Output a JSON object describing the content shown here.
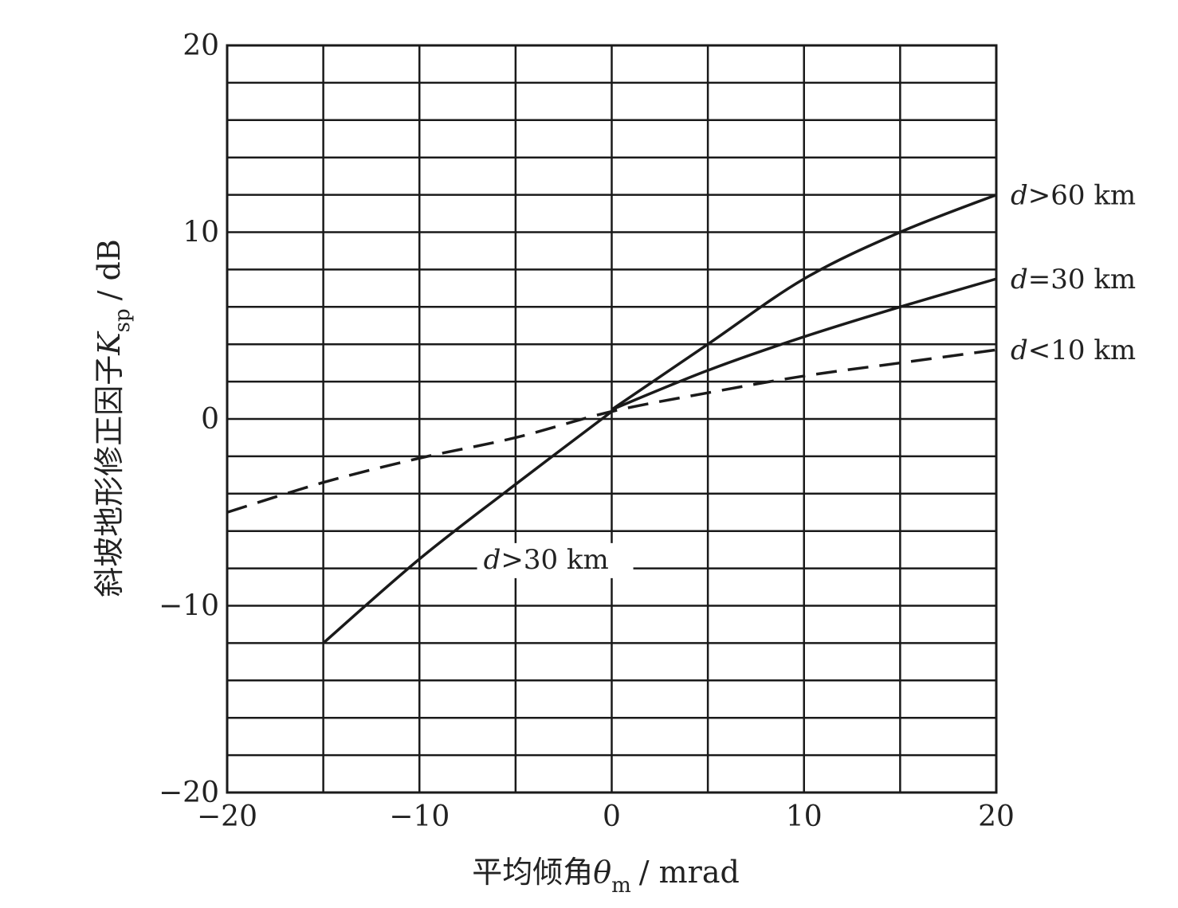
{
  "chart_data": {
    "type": "line",
    "xlabel": {
      "prefix": "平均倾角",
      "symbol": "θ",
      "sub": "m",
      "unit": "/ mrad"
    },
    "ylabel": {
      "prefix": "斜坡地形修正因子",
      "symbol": "K",
      "sub": "sp",
      "unit": "/ dB"
    },
    "xlim": [
      -20,
      20
    ],
    "ylim": [
      -20,
      20
    ],
    "x_ticks": [
      {
        "value": -20,
        "label": "−20"
      },
      {
        "value": -10,
        "label": "−10"
      },
      {
        "value": 0,
        "label": "0"
      },
      {
        "value": 10,
        "label": "10"
      },
      {
        "value": 20,
        "label": "20"
      }
    ],
    "y_ticks": [
      {
        "value": 20,
        "label": "20"
      },
      {
        "value": 10,
        "label": "10"
      },
      {
        "value": 0,
        "label": "0"
      },
      {
        "value": -10,
        "label": "−10"
      },
      {
        "value": -20,
        "label": "−20"
      }
    ],
    "x_grid_step": 5,
    "y_grid_step": 2,
    "grid": true,
    "series": [
      {
        "name": "d>60 km",
        "label": {
          "var": "d",
          "rest": ">60 km"
        },
        "style": "solid",
        "x": [
          0,
          5,
          10,
          15,
          20
        ],
        "y": [
          0.5,
          4,
          7.5,
          10,
          12
        ]
      },
      {
        "name": "d=30 km",
        "label": {
          "var": "d",
          "rest": "=30 km"
        },
        "style": "solid",
        "x": [
          0,
          5,
          10,
          15,
          20
        ],
        "y": [
          0.5,
          2.6,
          4.4,
          6,
          7.5
        ]
      },
      {
        "name": "d<10 km",
        "label": {
          "var": "d",
          "rest": "<10 km"
        },
        "style": "dashed",
        "x": [
          -20,
          -15,
          -10,
          -5,
          0,
          5,
          10,
          15,
          20
        ],
        "y": [
          -5,
          -3.4,
          -2.1,
          -1,
          0.4,
          1.4,
          2.3,
          3,
          3.7
        ]
      },
      {
        "name": "d>30 km",
        "label": {
          "var": "d",
          "rest": ">30 km"
        },
        "style": "solid",
        "x": [
          -15,
          -10,
          -5,
          0
        ],
        "y": [
          -12,
          -7.5,
          -3.5,
          0.4
        ]
      }
    ]
  }
}
